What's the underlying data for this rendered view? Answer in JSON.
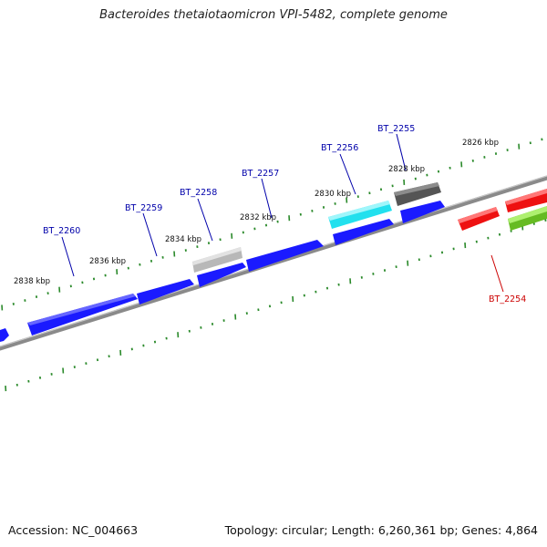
{
  "title": "Bacteroides thetaiotaomicron VPI-5482, complete genome",
  "footer": {
    "accession": "Accession: NC_004663",
    "topology": "Topology: circular; Length: 6,260,361 bp; Genes: 4,864"
  },
  "kbp_labels": [
    "2838 kbp",
    "2836 kbp",
    "2834 kbp",
    "2832 kbp",
    "2830 kbp",
    "2828 kbp",
    "2826 kbp"
  ],
  "gene_labels": [
    "BT_2260",
    "BT_2259",
    "BT_2258",
    "BT_2257",
    "BT_2256",
    "BT_2255",
    "BT_2254"
  ],
  "colors": {
    "backbone": "#8a8a8a",
    "tick": "#2b8a2b",
    "forward_gene": "#1a1aff",
    "label_blue": "#0000aa",
    "label_red": "#cc0000",
    "cyan_gene": "#22e0ee",
    "dark_gene": "#555555",
    "light_gene": "#b8b8b8",
    "red_gene": "#ee1111",
    "green_gene": "#66bb22"
  }
}
